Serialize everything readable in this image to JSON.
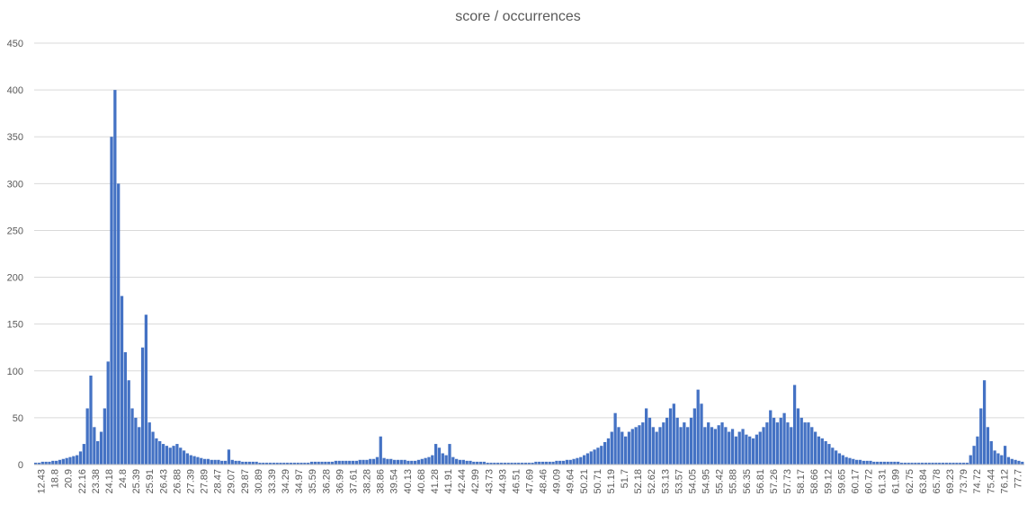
{
  "chart_data": {
    "type": "bar",
    "title": "score / occurrences",
    "xlabel": "",
    "ylabel": "",
    "ylim": [
      0,
      450
    ],
    "yticks": [
      0,
      50,
      100,
      150,
      200,
      250,
      300,
      350,
      400,
      450
    ],
    "grid": true,
    "legend": "none",
    "bar_color": "#4472c4",
    "x_tick_labels": [
      "12.43",
      "18.8",
      "20.9",
      "22.16",
      "23.38",
      "24.18",
      "24.8",
      "25.39",
      "25.91",
      "26.43",
      "26.88",
      "27.39",
      "27.89",
      "28.47",
      "29.07",
      "29.87",
      "30.89",
      "33.39",
      "34.29",
      "34.97",
      "35.59",
      "36.28",
      "36.99",
      "37.61",
      "38.28",
      "38.86",
      "39.54",
      "40.13",
      "40.68",
      "41.28",
      "41.91",
      "42.44",
      "42.99",
      "43.73",
      "44.93",
      "46.51",
      "47.69",
      "48.46",
      "49.09",
      "49.64",
      "50.21",
      "50.71",
      "51.19",
      "51.7",
      "52.18",
      "52.62",
      "53.13",
      "53.57",
      "54.05",
      "54.95",
      "55.42",
      "55.88",
      "56.35",
      "56.81",
      "57.26",
      "57.73",
      "58.17",
      "58.66",
      "59.12",
      "59.65",
      "60.17",
      "60.72",
      "61.31",
      "61.99",
      "62.75",
      "63.84",
      "65.78",
      "69.23",
      "73.79",
      "74.72",
      "75.44",
      "76.12",
      "77.7"
    ],
    "values": [
      2,
      2,
      3,
      3,
      3,
      4,
      4,
      5,
      6,
      7,
      8,
      9,
      10,
      14,
      22,
      60,
      95,
      40,
      25,
      35,
      60,
      110,
      350,
      400,
      300,
      180,
      120,
      90,
      60,
      50,
      40,
      125,
      160,
      45,
      35,
      28,
      25,
      22,
      20,
      18,
      20,
      22,
      18,
      15,
      12,
      10,
      9,
      8,
      7,
      6,
      6,
      5,
      5,
      5,
      4,
      4,
      16,
      5,
      4,
      4,
      3,
      3,
      3,
      3,
      3,
      2,
      2,
      2,
      2,
      2,
      2,
      2,
      2,
      2,
      2,
      2,
      2,
      2,
      2,
      2,
      3,
      3,
      3,
      3,
      3,
      3,
      3,
      4,
      4,
      4,
      4,
      4,
      4,
      4,
      5,
      5,
      5,
      6,
      6,
      8,
      30,
      7,
      6,
      6,
      5,
      5,
      5,
      5,
      4,
      4,
      4,
      5,
      6,
      7,
      8,
      10,
      22,
      18,
      12,
      10,
      22,
      8,
      6,
      5,
      5,
      4,
      4,
      3,
      3,
      3,
      3,
      2,
      2,
      2,
      2,
      2,
      2,
      2,
      2,
      2,
      2,
      2,
      2,
      2,
      2,
      3,
      3,
      3,
      3,
      3,
      3,
      4,
      4,
      4,
      5,
      5,
      6,
      7,
      8,
      10,
      12,
      14,
      16,
      18,
      20,
      24,
      28,
      35,
      55,
      40,
      35,
      30,
      35,
      38,
      40,
      42,
      45,
      60,
      50,
      40,
      35,
      40,
      45,
      50,
      60,
      65,
      50,
      40,
      45,
      40,
      50,
      60,
      80,
      65,
      40,
      45,
      40,
      38,
      42,
      45,
      40,
      35,
      38,
      30,
      35,
      38,
      32,
      30,
      28,
      32,
      35,
      40,
      45,
      58,
      50,
      45,
      50,
      55,
      45,
      40,
      85,
      60,
      50,
      45,
      45,
      40,
      35,
      30,
      28,
      25,
      22,
      18,
      15,
      12,
      10,
      8,
      7,
      6,
      5,
      5,
      4,
      4,
      4,
      3,
      3,
      3,
      3,
      3,
      3,
      3,
      3,
      2,
      2,
      2,
      2,
      2,
      2,
      2,
      2,
      2,
      2,
      2,
      2,
      2,
      2,
      2,
      2,
      2,
      2,
      2,
      2,
      10,
      20,
      30,
      60,
      90,
      40,
      25,
      15,
      12,
      10,
      20,
      8,
      6,
      5,
      4,
      3
    ]
  }
}
